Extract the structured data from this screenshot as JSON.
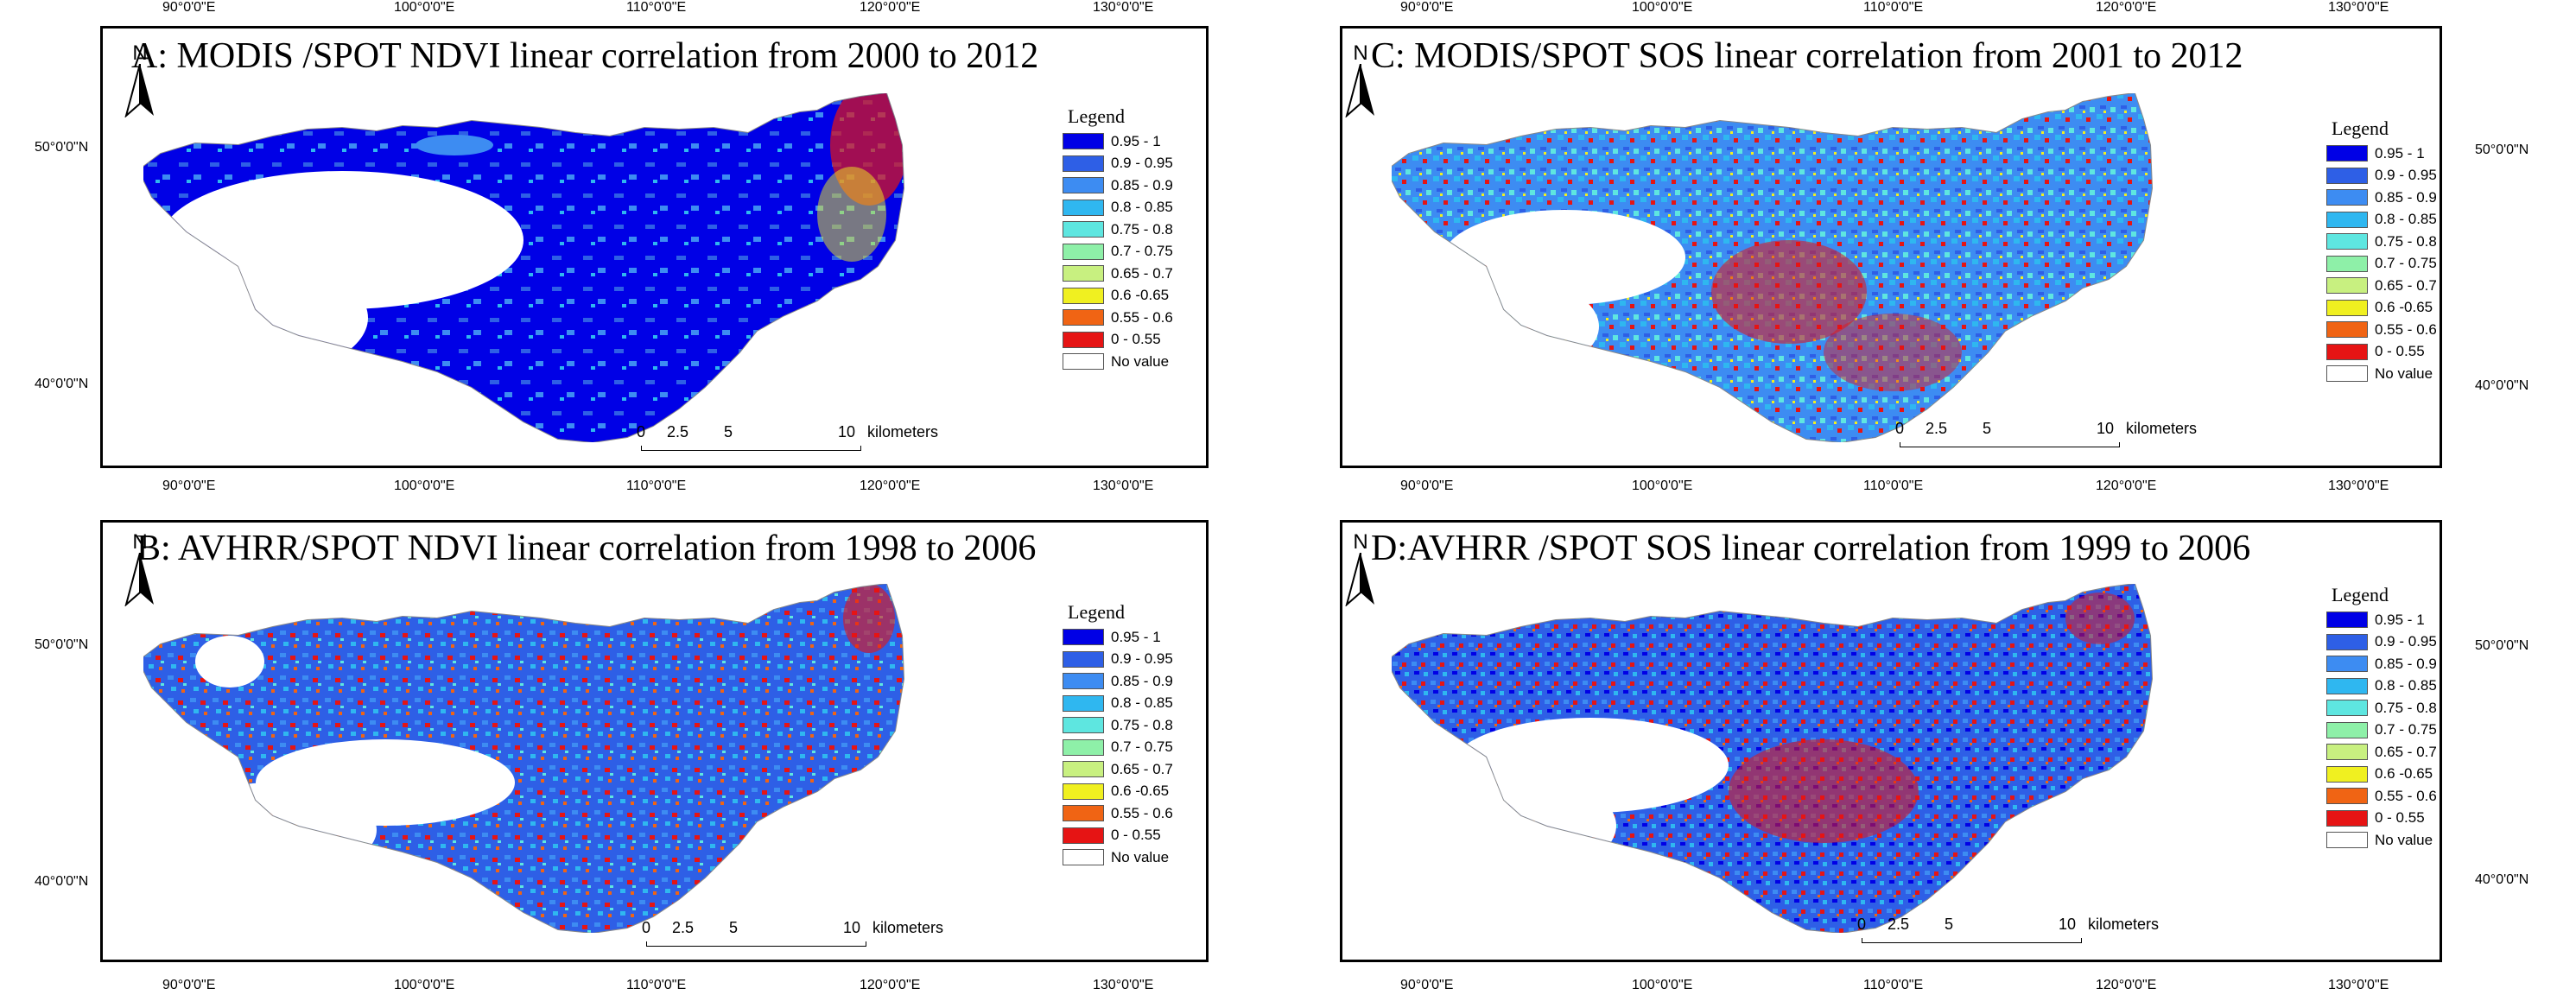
{
  "axes": {
    "lon_labels": [
      "90°0'0\"E",
      "100°0'0\"E",
      "110°0'0\"E",
      "120°0'0\"E",
      "130°0'0\"E"
    ],
    "lat_labels": [
      "50°0'0\"N",
      "40°0'0\"N"
    ]
  },
  "compass": {
    "letter": "N"
  },
  "scale_bar": {
    "ticks": [
      "0",
      "2.5",
      "5",
      "10"
    ],
    "unit": "kilometers"
  },
  "legend": {
    "title": "Legend",
    "classes": [
      {
        "label": "0.95 - 1",
        "color": "#0000e6"
      },
      {
        "label": "0.9 - 0.95",
        "color": "#2e5fe6"
      },
      {
        "label": "0.85 - 0.9",
        "color": "#3d8cf2"
      },
      {
        "label": "0.8 - 0.85",
        "color": "#2fb7f0"
      },
      {
        "label": "0.75 - 0.8",
        "color": "#5ee6e0"
      },
      {
        "label": "0.7 - 0.75",
        "color": "#8ef0a8"
      },
      {
        "label": "0.65 - 0.7",
        "color": "#c8f080"
      },
      {
        "label": "0.6 -0.65",
        "color": "#f0f020"
      },
      {
        "label": "0.55 - 0.6",
        "color": "#f06414"
      },
      {
        "label": "0 - 0.55",
        "color": "#e61414"
      },
      {
        "label": "No value",
        "color": "#ffffff"
      }
    ]
  },
  "panels": [
    {
      "title": "A: MODIS /SPOT NDVI linear correlation from 2000 to 2012"
    },
    {
      "title": "C: MODIS/SPOT SOS linear correlation from 2001 to 2012"
    },
    {
      "title": "B: AVHRR/SPOT NDVI linear correlation from 1998 to 2006"
    },
    {
      "title": "D:AVHRR /SPOT SOS linear correlation from 1999 to 2006"
    }
  ]
}
